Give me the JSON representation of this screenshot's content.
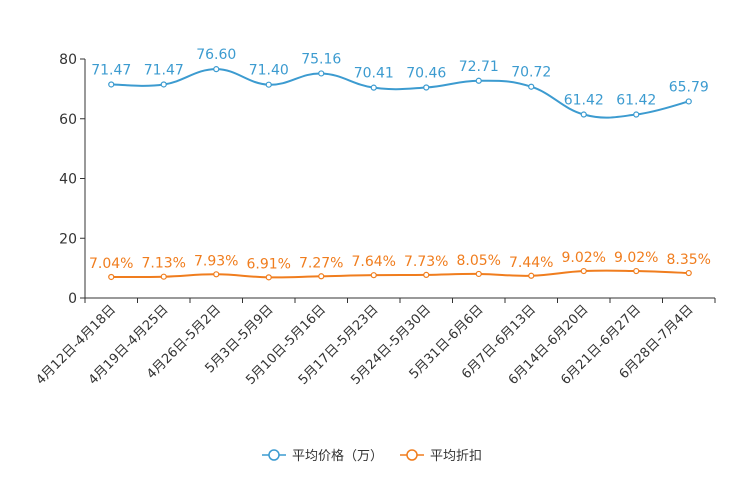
{
  "chart_data": {
    "type": "line",
    "title": "",
    "xlabel": "",
    "ylabel": "",
    "ylim": [
      0,
      80
    ],
    "yticks": [
      0,
      20,
      40,
      60,
      80
    ],
    "grid": false,
    "legend_position": "bottom",
    "categories": [
      "4月12日-4月18日",
      "4月19日-4月25日",
      "4月26日-5月2日",
      "5月3日-5月9日",
      "5月10日-5月16日",
      "5月17日-5月23日",
      "5月24日-5月30日",
      "5月31日-6月6日",
      "6月7日-6月13日",
      "6月14日-6月20日",
      "6月21日-6月27日",
      "6月28日-7月4日"
    ],
    "series": [
      {
        "name": "平均价格（万）",
        "color": "#3c9bd0",
        "values": [
          71.47,
          71.47,
          76.6,
          71.4,
          75.16,
          70.41,
          70.46,
          72.71,
          70.72,
          61.42,
          61.42,
          65.79
        ],
        "labels": [
          "71.47",
          "71.47",
          "76.60",
          "71.40",
          "75.16",
          "70.41",
          "70.46",
          "72.71",
          "70.72",
          "61.42",
          "61.42",
          "65.79"
        ]
      },
      {
        "name": "平均折扣",
        "color": "#f07d1e",
        "values": [
          7.04,
          7.13,
          7.93,
          6.91,
          7.27,
          7.64,
          7.73,
          8.05,
          7.44,
          9.02,
          9.02,
          8.35
        ],
        "labels": [
          "7.04%",
          "7.13%",
          "7.93%",
          "6.91%",
          "7.27%",
          "7.64%",
          "7.73%",
          "8.05%",
          "7.44%",
          "9.02%",
          "9.02%",
          "8.35%"
        ]
      }
    ]
  }
}
